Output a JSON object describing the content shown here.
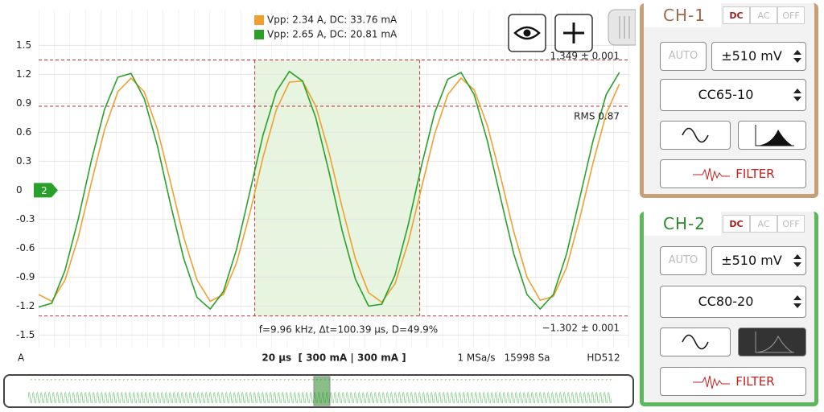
{
  "chart_data": {
    "type": "line",
    "x": [
      0,
      8,
      16,
      24,
      32,
      40,
      48,
      56,
      64,
      72,
      80,
      88,
      96,
      104,
      112,
      120,
      128,
      136,
      144,
      152,
      160,
      168,
      176,
      184,
      192,
      200,
      208,
      216,
      224,
      232,
      240,
      248,
      256,
      264,
      272,
      280,
      288,
      296,
      304,
      312,
      320,
      328,
      336,
      344,
      352
    ],
    "xlim": [
      0,
      358
    ],
    "ylim": [
      -1.63,
      1.87
    ],
    "yticks": [
      1.5,
      1.2,
      0.9,
      0.6,
      0.3,
      0,
      -0.3,
      -0.6,
      -0.9,
      -1.2,
      -1.5
    ],
    "y_unit": "A",
    "grid": true,
    "series": [
      {
        "name": "Vpp: 2.34 A, DC: 33.76 mA",
        "color": "#f0a030",
        "values": [
          -1.08,
          -1.15,
          -0.93,
          -0.49,
          0.08,
          0.63,
          1.02,
          1.16,
          1.02,
          0.63,
          0.08,
          -0.49,
          -0.93,
          -1.15,
          -1.08,
          -0.75,
          -0.24,
          0.34,
          0.83,
          1.12,
          1.13,
          0.87,
          0.39,
          -0.18,
          -0.71,
          -1.06,
          -1.16,
          -0.97,
          -0.54,
          0.02,
          0.58,
          0.99,
          1.16,
          1.04,
          0.67,
          0.14,
          -0.43,
          -0.9,
          -1.14,
          -1.1,
          -0.8,
          -0.29,
          0.28,
          0.79,
          1.1
        ]
      },
      {
        "name": "Vpp: 2.65 A, DC: 20.81 mA",
        "color": "#2aa02a",
        "values": [
          -1.21,
          -1.17,
          -0.83,
          -0.3,
          0.31,
          0.84,
          1.17,
          1.21,
          0.95,
          0.46,
          -0.15,
          -0.71,
          -1.11,
          -1.23,
          -1.05,
          -0.61,
          -0.02,
          0.57,
          1.02,
          1.23,
          1.13,
          0.75,
          0.19,
          -0.42,
          -0.92,
          -1.2,
          -1.18,
          -0.88,
          -0.36,
          0.25,
          0.8,
          1.15,
          1.22,
          0.99,
          0.51,
          -0.08,
          -0.66,
          -1.08,
          -1.23,
          -1.08,
          -0.66,
          -0.08,
          0.51,
          0.99,
          1.22
        ]
      }
    ],
    "h_cursors": [
      {
        "value": 1.349,
        "label": "1.349 ± 0.001"
      },
      {
        "value": 0.87,
        "label": "RMS 0.87"
      },
      {
        "value": -1.302,
        "label": "−1.302 ± 0.001"
      }
    ],
    "v_cursors": [
      131,
      231
    ],
    "measurement": "f=9.96 kHz, Δt=100.39 µs, D=49.9%",
    "channel_marker": {
      "value": 0,
      "label": "2"
    },
    "timebase": "20 µs  [ 300 mA | 300 mA ]",
    "sample_rate": "1 MSa/s",
    "samples": "15998 Sa",
    "mode": "HD512"
  },
  "channels": [
    {
      "title": "CH-1",
      "coupling": [
        "DC",
        "AC",
        "OFF"
      ],
      "auto": "AUTO",
      "range": "±510 mV",
      "probe": "CC65-10",
      "filter": "FILTER"
    },
    {
      "title": "CH-2",
      "coupling": [
        "DC",
        "AC",
        "OFF"
      ],
      "auto": "AUTO",
      "range": "±510 mV",
      "probe": "CC80-20",
      "filter": "FILTER"
    }
  ]
}
